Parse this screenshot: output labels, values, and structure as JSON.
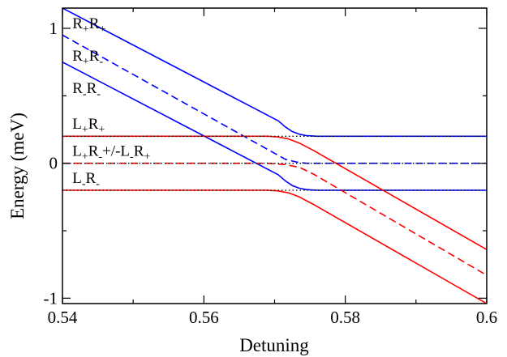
{
  "chart_data": {
    "type": "line",
    "xlabel": "Detuning",
    "ylabel": "Energy (meV)",
    "xlim": [
      0.54,
      0.6
    ],
    "ylim": [
      -1.04,
      1.15
    ],
    "x_ticks": [
      0.54,
      0.56,
      0.58,
      0.6
    ],
    "x_tick_labels": [
      "0.54",
      "0.56",
      "0.58",
      "0.6"
    ],
    "y_ticks": [
      -1,
      0,
      1
    ],
    "y_tick_labels": [
      "-1",
      "0",
      "1"
    ],
    "grid": false,
    "legend": "none",
    "colors": {
      "blue": "#0000ff",
      "red": "#ff0000",
      "black": "#000000"
    },
    "series": [
      {
        "color": "#0000ff",
        "dash": "solid",
        "x": [
          0.54,
          0.5705,
          0.5715,
          0.5725,
          0.5735,
          0.5745,
          0.576,
          0.578,
          0.6
        ],
        "y": [
          1.15,
          0.315,
          0.27,
          0.235,
          0.215,
          0.205,
          0.2,
          0.2,
          0.2
        ]
      },
      {
        "color": "#0000ff",
        "dash": "dashed",
        "x": [
          0.54,
          0.5715,
          0.573,
          0.5745,
          0.576,
          0.578,
          0.6
        ],
        "y": [
          0.95,
          0.03,
          0.01,
          0.0,
          0.0,
          0.0,
          0.0
        ]
      },
      {
        "color": "#0000ff",
        "dash": "solid",
        "x": [
          0.54,
          0.5705,
          0.5715,
          0.5725,
          0.5735,
          0.5745,
          0.576,
          0.578,
          0.6
        ],
        "y": [
          0.75,
          -0.085,
          -0.13,
          -0.165,
          -0.185,
          -0.195,
          -0.2,
          -0.2,
          -0.2
        ]
      },
      {
        "color": "#ff0000",
        "dash": "solid",
        "x": [
          0.54,
          0.569,
          0.5705,
          0.572,
          0.5735,
          0.5755,
          0.6
        ],
        "y": [
          0.2,
          0.2,
          0.195,
          0.18,
          0.15,
          0.095,
          -0.64
        ]
      },
      {
        "color": "#ff0000",
        "dash": "dashed",
        "x": [
          0.54,
          0.569,
          0.5715,
          0.5735,
          0.5755,
          0.6
        ],
        "y": [
          0.0,
          0.0,
          -0.01,
          -0.03,
          -0.08,
          -0.83
        ]
      },
      {
        "color": "#ff0000",
        "dash": "solid",
        "x": [
          0.54,
          0.569,
          0.5705,
          0.572,
          0.5735,
          0.5755,
          0.6
        ],
        "y": [
          -0.2,
          -0.2,
          -0.205,
          -0.22,
          -0.25,
          -0.305,
          -1.04
        ]
      },
      {
        "color": "#000000",
        "dash": "dotted",
        "x": [
          0.54,
          0.6
        ],
        "y": [
          0.2,
          0.2
        ]
      },
      {
        "color": "#000000",
        "dash": "dotted",
        "x": [
          0.54,
          0.6
        ],
        "y": [
          0.0,
          0.0
        ]
      },
      {
        "color": "#000000",
        "dash": "dotted",
        "x": [
          0.54,
          0.6
        ],
        "y": [
          -0.2,
          -0.2
        ]
      }
    ],
    "annotations": [
      {
        "parts": [
          [
            "R",
            false
          ],
          [
            "+",
            true
          ],
          [
            "R",
            false
          ],
          [
            "+",
            true
          ]
        ],
        "x": 0.5414,
        "y": 1.0
      },
      {
        "parts": [
          [
            "R",
            false
          ],
          [
            "+",
            true
          ],
          [
            "R",
            false
          ],
          [
            "-",
            true
          ]
        ],
        "x": 0.5414,
        "y": 0.76
      },
      {
        "parts": [
          [
            "R",
            false
          ],
          [
            "-",
            true
          ],
          [
            "R",
            false
          ],
          [
            "-",
            true
          ]
        ],
        "x": 0.5414,
        "y": 0.52
      },
      {
        "parts": [
          [
            "L",
            false
          ],
          [
            "+",
            true
          ],
          [
            "R",
            false
          ],
          [
            "+",
            true
          ]
        ],
        "x": 0.5414,
        "y": 0.255
      },
      {
        "parts": [
          [
            "L",
            false
          ],
          [
            "+",
            true
          ],
          [
            "R",
            false
          ],
          [
            "-",
            true
          ],
          [
            "+/-L",
            false
          ],
          [
            "-",
            true
          ],
          [
            "R",
            false
          ],
          [
            "+",
            true
          ]
        ],
        "x": 0.5414,
        "y": 0.055
      },
      {
        "parts": [
          [
            "L",
            false
          ],
          [
            "-",
            true
          ],
          [
            "R",
            false
          ],
          [
            "-",
            true
          ]
        ],
        "x": 0.5414,
        "y": -0.145
      }
    ]
  }
}
